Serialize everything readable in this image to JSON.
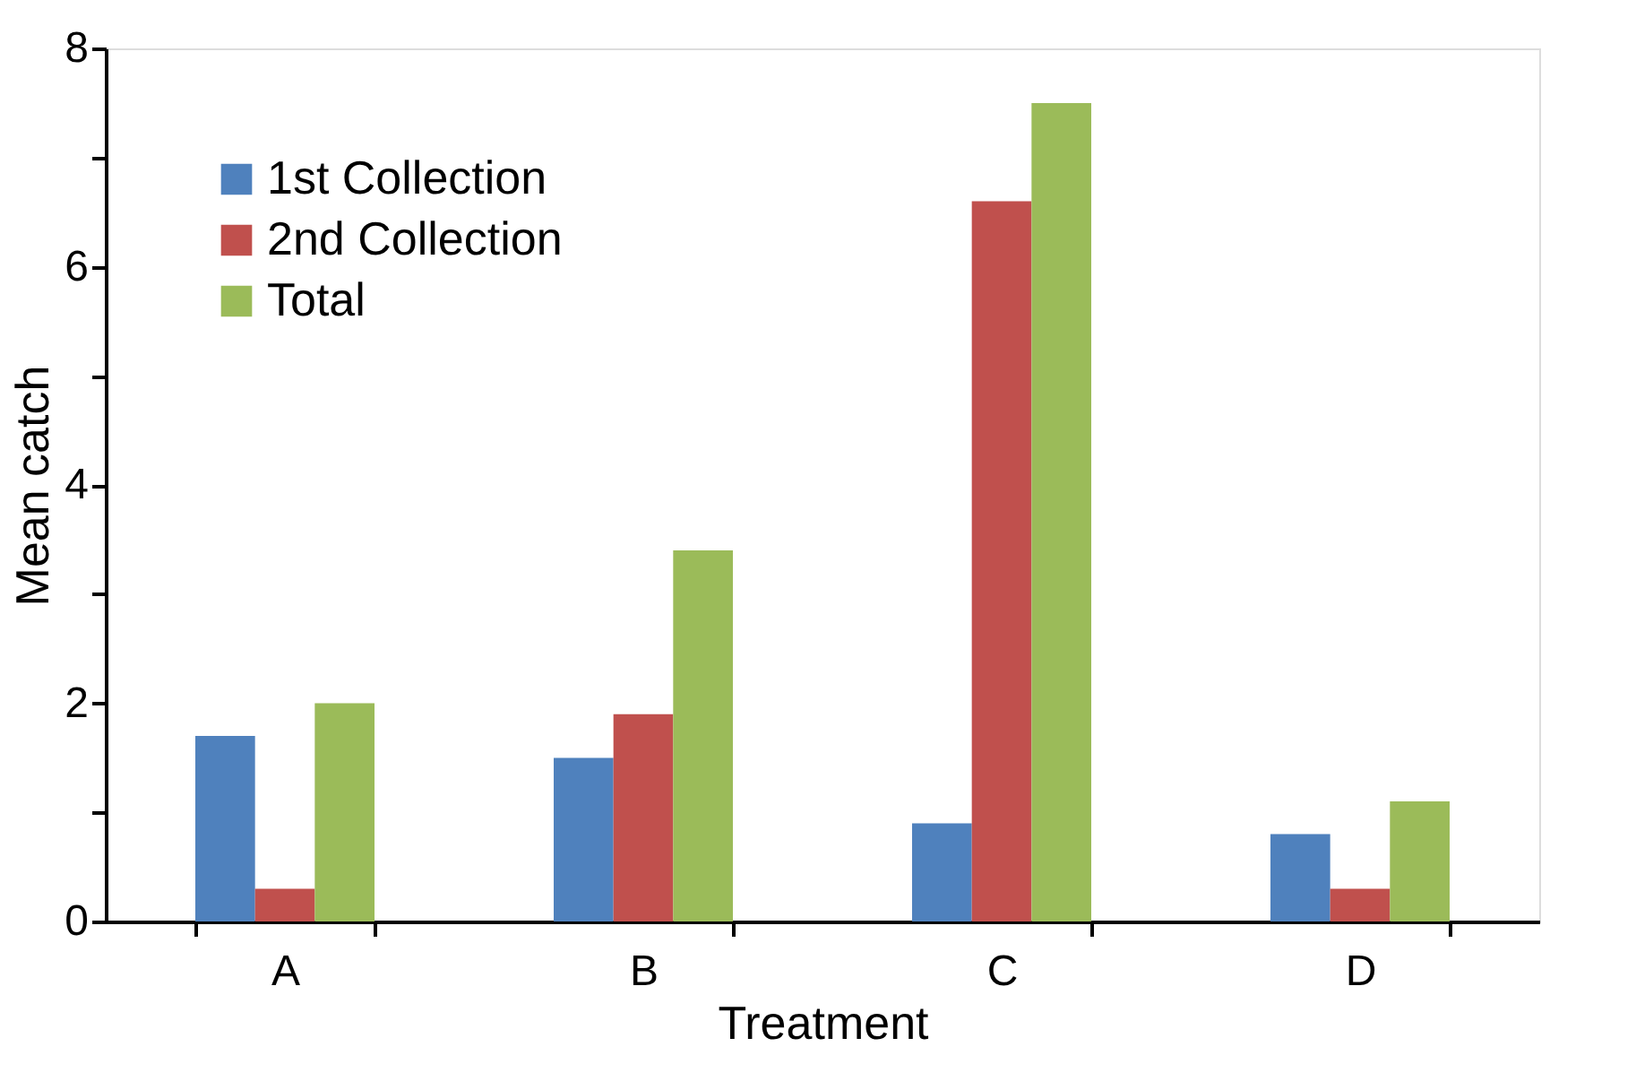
{
  "chart_data": {
    "type": "bar",
    "xlabel": "Treatment",
    "ylabel": "Mean catch",
    "categories": [
      "A",
      "B",
      "C",
      "D"
    ],
    "series": [
      {
        "name": "1st Collection",
        "color": "#4f81bd",
        "values": [
          1.7,
          1.5,
          0.9,
          0.8
        ]
      },
      {
        "name": "2nd Collection",
        "color": "#c0504d",
        "values": [
          0.3,
          1.9,
          6.6,
          0.3
        ]
      },
      {
        "name": "Total",
        "color": "#9bbb59",
        "values": [
          2.0,
          3.4,
          7.5,
          1.1
        ]
      }
    ],
    "ylim": [
      0,
      8
    ],
    "yticks": [
      0,
      {
        "value": 1,
        "label": null
      },
      2,
      {
        "value": 3,
        "label": null
      },
      4,
      {
        "value": 5,
        "label": null
      },
      6,
      {
        "value": 7,
        "label": null
      },
      8
    ],
    "grid": false,
    "legend": "top left"
  }
}
